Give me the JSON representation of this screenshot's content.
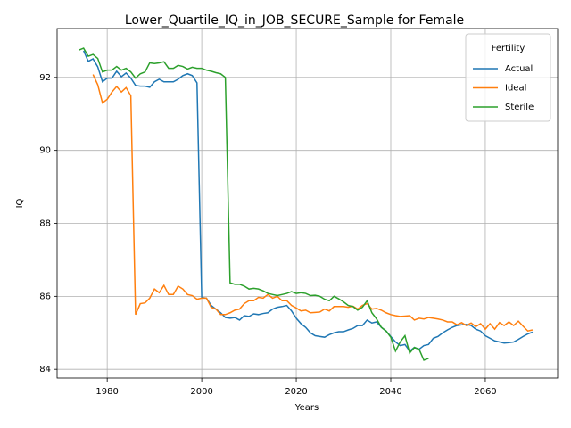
{
  "chart_data": {
    "type": "line",
    "title": "Lower_Quartile_IQ_in_JOB_SECURE_Sample for Female",
    "x_label": "Years",
    "y_label": "IQ",
    "legend_title": "Fertility",
    "legend": "upper right",
    "grid": true,
    "xlim": [
      1969.4,
      2075.3
    ],
    "ylim": [
      83.76,
      93.34
    ],
    "xticks": [
      1980,
      2000,
      2020,
      2040,
      2060
    ],
    "yticks": [
      84,
      86,
      88,
      90,
      92
    ],
    "x": [
      1974,
      1975,
      1976,
      1977,
      1978,
      1979,
      1980,
      1981,
      1982,
      1983,
      1984,
      1985,
      1986,
      1987,
      1988,
      1989,
      1990,
      1991,
      1992,
      1993,
      1994,
      1995,
      1996,
      1997,
      1998,
      1999,
      2000,
      2001,
      2002,
      2003,
      2004,
      2005,
      2006,
      2007,
      2008,
      2009,
      2010,
      2011,
      2012,
      2013,
      2014,
      2015,
      2016,
      2017,
      2018,
      2019,
      2020,
      2021,
      2022,
      2023,
      2024,
      2025,
      2026,
      2027,
      2028,
      2029,
      2030,
      2031,
      2032,
      2033,
      2034,
      2035,
      2036,
      2037,
      2038,
      2039,
      2040,
      2041,
      2042,
      2043,
      2044,
      2045,
      2046,
      2047,
      2048,
      2049,
      2050,
      2051,
      2052,
      2053,
      2054,
      2055,
      2056,
      2057,
      2058,
      2059,
      2060,
      2061,
      2062,
      2063,
      2064,
      2065,
      2066,
      2067,
      2068,
      2069,
      2070
    ],
    "series": [
      {
        "name": "Actual",
        "color": "#1f77b4",
        "values": [
          null,
          92.73,
          92.44,
          92.51,
          92.29,
          91.88,
          91.98,
          91.98,
          92.17,
          92.02,
          92.12,
          91.98,
          91.78,
          91.76,
          91.76,
          91.73,
          91.88,
          91.95,
          91.88,
          91.88,
          91.88,
          91.95,
          92.05,
          92.1,
          92.05,
          91.85,
          85.97,
          85.95,
          85.75,
          85.65,
          85.55,
          85.42,
          85.4,
          85.42,
          85.35,
          85.47,
          85.45,
          85.52,
          85.5,
          85.53,
          85.55,
          85.65,
          85.7,
          85.72,
          85.75,
          85.6,
          85.4,
          85.25,
          85.15,
          85.0,
          84.92,
          84.9,
          84.88,
          84.95,
          85.0,
          85.03,
          85.03,
          85.08,
          85.12,
          85.2,
          85.2,
          85.35,
          85.27,
          85.3,
          85.15,
          85.05,
          84.9,
          84.75,
          84.65,
          84.68,
          84.5,
          84.6,
          84.55,
          84.65,
          84.68,
          84.85,
          84.9,
          85.0,
          85.08,
          85.15,
          85.2,
          85.22,
          85.23,
          85.2,
          85.1,
          85.05,
          84.92,
          84.85,
          84.78,
          84.75,
          84.72,
          84.73,
          84.75,
          84.82,
          84.9,
          84.97,
          85.02
        ]
      },
      {
        "name": "Ideal",
        "color": "#ff7f0e",
        "values": [
          null,
          null,
          null,
          92.08,
          91.8,
          91.3,
          91.4,
          91.6,
          91.75,
          91.6,
          91.72,
          91.5,
          85.5,
          85.8,
          85.82,
          85.95,
          86.2,
          86.1,
          86.3,
          86.05,
          86.05,
          86.28,
          86.2,
          86.05,
          86.02,
          85.92,
          85.95,
          85.95,
          85.7,
          85.65,
          85.5,
          85.5,
          85.55,
          85.62,
          85.65,
          85.8,
          85.88,
          85.88,
          85.97,
          85.95,
          86.05,
          85.95,
          86.0,
          85.88,
          85.88,
          85.75,
          85.68,
          85.6,
          85.62,
          85.55,
          85.56,
          85.57,
          85.65,
          85.6,
          85.72,
          85.72,
          85.72,
          85.7,
          85.73,
          85.65,
          85.75,
          85.8,
          85.65,
          85.67,
          85.62,
          85.55,
          85.5,
          85.47,
          85.45,
          85.46,
          85.47,
          85.35,
          85.4,
          85.38,
          85.42,
          85.4,
          85.38,
          85.35,
          85.3,
          85.3,
          85.22,
          85.28,
          85.2,
          85.27,
          85.17,
          85.25,
          85.1,
          85.25,
          85.1,
          85.28,
          85.2,
          85.3,
          85.2,
          85.32,
          85.18,
          85.05,
          85.08
        ]
      },
      {
        "name": "Sterile",
        "color": "#2ca02c",
        "values": [
          92.75,
          92.8,
          92.58,
          92.63,
          92.52,
          92.15,
          92.2,
          92.2,
          92.3,
          92.2,
          92.25,
          92.15,
          91.98,
          92.1,
          92.15,
          92.4,
          92.38,
          92.4,
          92.43,
          92.25,
          92.25,
          92.33,
          92.3,
          92.23,
          92.28,
          92.25,
          92.25,
          92.2,
          92.17,
          92.13,
          92.1,
          92.0,
          86.37,
          86.33,
          86.33,
          86.28,
          86.2,
          86.22,
          86.2,
          86.15,
          86.08,
          86.05,
          86.02,
          86.05,
          86.08,
          86.13,
          86.08,
          86.1,
          86.08,
          86.02,
          86.03,
          86.0,
          85.92,
          85.88,
          86.0,
          85.93,
          85.85,
          85.75,
          85.72,
          85.62,
          85.7,
          85.88,
          85.55,
          85.38,
          85.15,
          85.05,
          84.88,
          84.5,
          84.75,
          84.92,
          84.45,
          84.6,
          84.55,
          84.25,
          84.3,
          null,
          null,
          null,
          null,
          null,
          null,
          null,
          null,
          null,
          null,
          null,
          null,
          null,
          null,
          null,
          null,
          null,
          null,
          null,
          null,
          null,
          null
        ]
      }
    ]
  }
}
